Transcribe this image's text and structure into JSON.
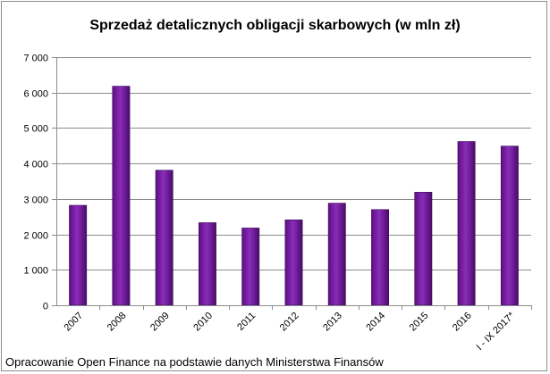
{
  "chart_data": {
    "type": "bar",
    "title": "Sprzedaż detalicznych obligacji skarbowych (w mln zł)",
    "categories": [
      "2007",
      "2008",
      "2009",
      "2010",
      "2011",
      "2012",
      "2013",
      "2014",
      "2015",
      "2016",
      "I - IX 2017*"
    ],
    "values": [
      2820,
      6180,
      3810,
      2330,
      2180,
      2410,
      2880,
      2700,
      3190,
      4620,
      4490
    ],
    "ylim": [
      0,
      7000
    ],
    "yticks": [
      0,
      1000,
      2000,
      3000,
      4000,
      5000,
      6000,
      7000
    ],
    "ytick_labels": [
      "0",
      "1 000",
      "2 000",
      "3 000",
      "4 000",
      "5 000",
      "6 000",
      "7 000"
    ],
    "xlabel": "",
    "ylabel": "",
    "grid": true,
    "legend": "none",
    "bar_color": "#7a1fa2"
  },
  "footer": {
    "source": "Opracowanie Open Finance na podstawie danych Ministerstwa Finansów"
  }
}
